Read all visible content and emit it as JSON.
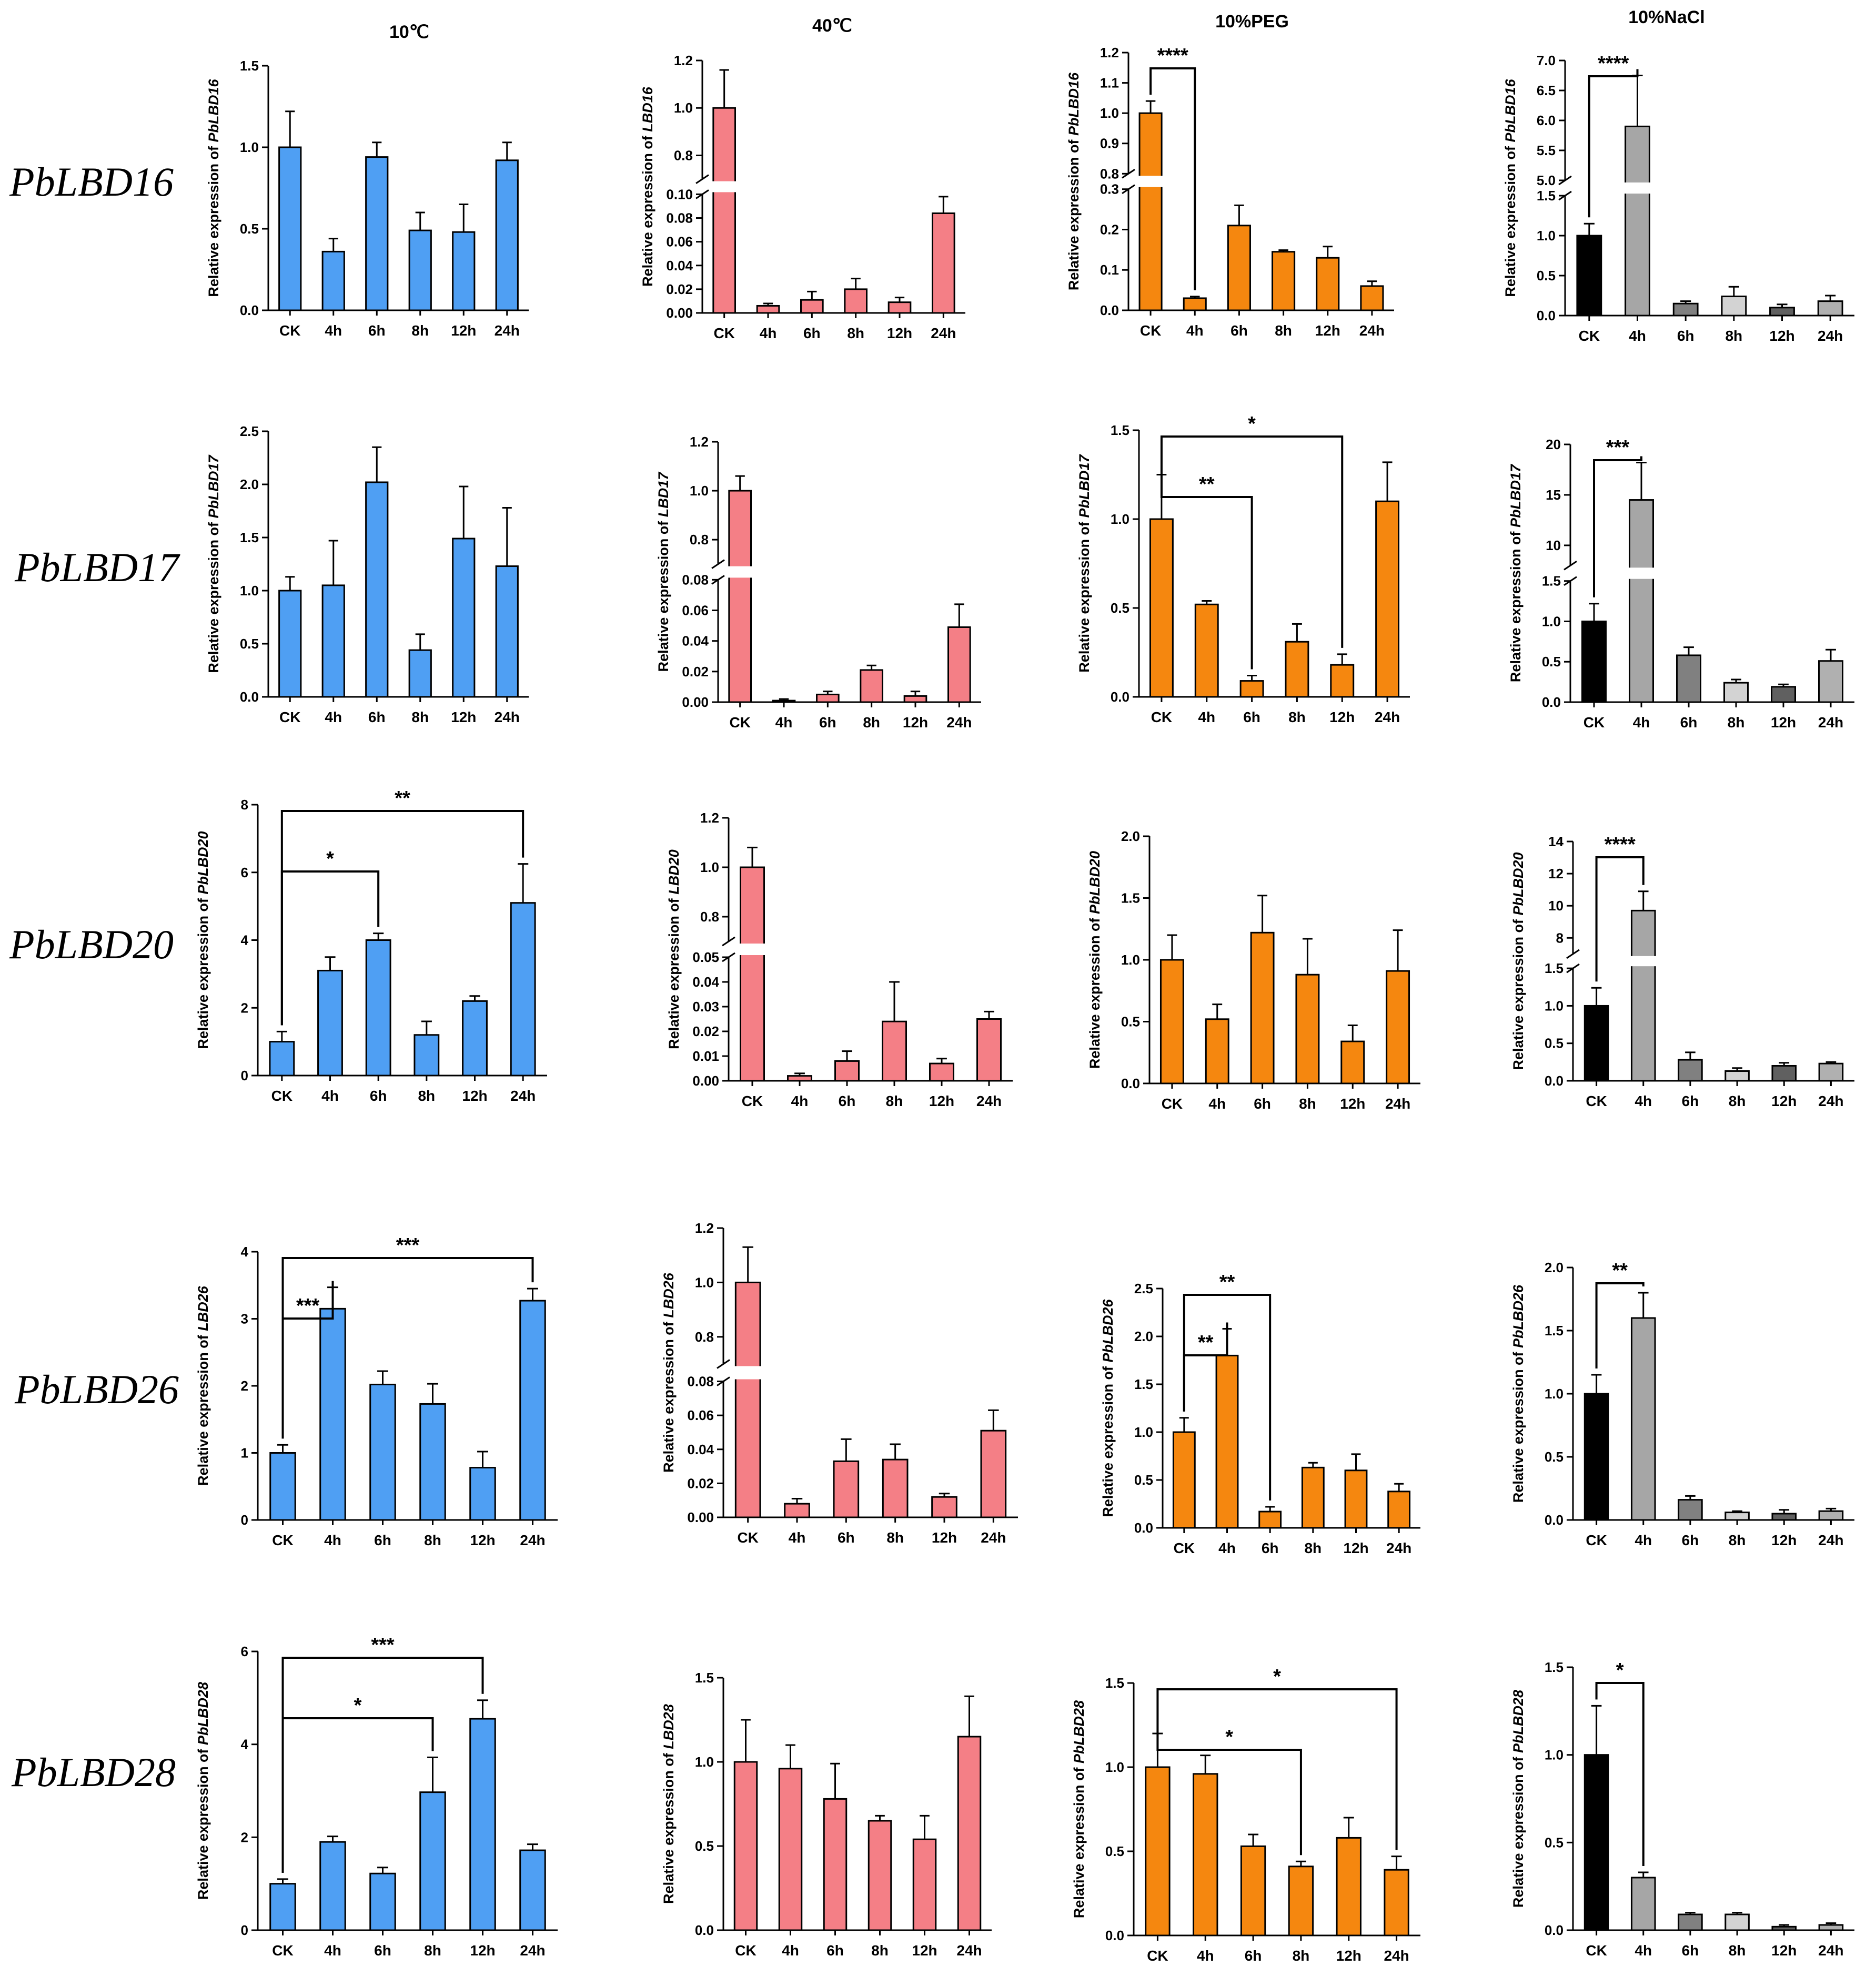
{
  "column_titles": [
    "10℃",
    "40℃",
    "10%PEG",
    "10%NaCl"
  ],
  "row_labels": [
    "PbLBD16",
    "PbLBD17",
    "PbLBD20",
    "PbLBD26",
    "PbLBD28"
  ],
  "colors": {
    "cold": "#4f9ff3",
    "heat": "#f47f86",
    "peg": "#f5870f",
    "nacl": [
      "#000000",
      "#a6a6a6",
      "#808080",
      "#d3d3d3",
      "#606060",
      "#b0b0b0"
    ],
    "axis": "#000000"
  },
  "chart_data": [
    {
      "type": "bar",
      "ylabel_prefix": "Relative expression of ",
      "ylabel_gene": "PbLBD16",
      "categories": [
        "CK",
        "4h",
        "6h",
        "8h",
        "12h",
        "24h"
      ],
      "values": [
        1.0,
        0.36,
        0.94,
        0.49,
        0.48,
        0.92
      ],
      "errors": [
        0.22,
        0.08,
        0.09,
        0.11,
        0.17,
        0.11
      ],
      "ylim": [
        0,
        1.5
      ],
      "yticks": [
        "0.0",
        "0.5",
        "1.0",
        "1.5"
      ],
      "significance": []
    },
    {
      "type": "bar",
      "ylabel_prefix": "Relative expression of ",
      "ylabel_gene": "LBD16",
      "categories": [
        "CK",
        "4h",
        "6h",
        "8h",
        "12h",
        "24h"
      ],
      "values": [
        1.0,
        0.006,
        0.011,
        0.02,
        0.009,
        0.084
      ],
      "errors": [
        0.16,
        0.002,
        0.007,
        0.009,
        0.004,
        0.014
      ],
      "broken_axis": {
        "lower": [
          0,
          0.1
        ],
        "upper": [
          0.7,
          1.2
        ]
      },
      "yticks_lower": [
        "0.00",
        "0.02",
        "0.04",
        "0.06",
        "0.08",
        "0.10"
      ],
      "yticks_upper": [
        "0.8",
        "1.0",
        "1.2"
      ],
      "significance": []
    },
    {
      "type": "bar",
      "ylabel_prefix": "Relative expression of ",
      "ylabel_gene": "PbLBD16",
      "categories": [
        "CK",
        "4h",
        "6h",
        "8h",
        "12h",
        "24h"
      ],
      "values": [
        1.0,
        0.03,
        0.21,
        0.145,
        0.13,
        0.06
      ],
      "errors": [
        0.04,
        0.004,
        0.05,
        0.004,
        0.028,
        0.012
      ],
      "broken_axis": {
        "lower": [
          0,
          0.3
        ],
        "upper": [
          0.8,
          1.2
        ]
      },
      "yticks_lower": [
        "0.0",
        "0.1",
        "0.2",
        "0.3"
      ],
      "yticks_upper": [
        "0.8",
        "0.9",
        "1.0",
        "1.1",
        "1.2"
      ],
      "significance": [
        {
          "from": 0,
          "to": 1,
          "label": "****"
        }
      ]
    },
    {
      "type": "bar",
      "ylabel_prefix": "Relative expression of ",
      "ylabel_gene": "PbLBD16",
      "categories": [
        "CK",
        "4h",
        "6h",
        "8h",
        "12h",
        "24h"
      ],
      "values": [
        1.0,
        5.9,
        0.15,
        0.24,
        0.1,
        0.18
      ],
      "errors": [
        0.15,
        0.85,
        0.03,
        0.12,
        0.04,
        0.07
      ],
      "broken_axis": {
        "lower": [
          0,
          1.5
        ],
        "upper": [
          5.0,
          7.0
        ]
      },
      "yticks_lower": [
        "0.0",
        "0.5",
        "1.0",
        "1.5"
      ],
      "yticks_upper": [
        "5.0",
        "5.5",
        "6.0",
        "6.5",
        "7.0"
      ],
      "significance": [
        {
          "from": 0,
          "to": 1,
          "label": "****"
        }
      ]
    },
    {
      "type": "bar",
      "ylabel_prefix": "Relative expression of ",
      "ylabel_gene": "PbLBD17",
      "categories": [
        "CK",
        "4h",
        "6h",
        "8h",
        "12h",
        "24h"
      ],
      "values": [
        1.0,
        1.05,
        2.02,
        0.44,
        1.49,
        1.23
      ],
      "errors": [
        0.13,
        0.42,
        0.33,
        0.15,
        0.49,
        0.55
      ],
      "ylim": [
        0,
        2.5
      ],
      "yticks": [
        "0.0",
        "0.5",
        "1.0",
        "1.5",
        "2.0",
        "2.5"
      ],
      "significance": []
    },
    {
      "type": "bar",
      "ylabel_prefix": "Relative expression of ",
      "ylabel_gene": "LBD17",
      "categories": [
        "CK",
        "4h",
        "6h",
        "8h",
        "12h",
        "24h"
      ],
      "values": [
        1.0,
        0.001,
        0.005,
        0.021,
        0.004,
        0.049
      ],
      "errors": [
        0.06,
        0.001,
        0.002,
        0.003,
        0.003,
        0.015
      ],
      "broken_axis": {
        "lower": [
          0,
          0.08
        ],
        "upper": [
          0.7,
          1.2
        ]
      },
      "yticks_lower": [
        "0.00",
        "0.02",
        "0.04",
        "0.06",
        "0.08"
      ],
      "yticks_upper": [
        "0.8",
        "1.0",
        "1.2"
      ],
      "significance": []
    },
    {
      "type": "bar",
      "ylabel_prefix": "Relative expression of ",
      "ylabel_gene": "PbLBD17",
      "categories": [
        "CK",
        "4h",
        "6h",
        "8h",
        "12h",
        "24h"
      ],
      "values": [
        1.0,
        0.52,
        0.09,
        0.31,
        0.18,
        1.1
      ],
      "errors": [
        0.25,
        0.02,
        0.03,
        0.1,
        0.06,
        0.22
      ],
      "ylim": [
        0,
        1.5
      ],
      "yticks": [
        "0.0",
        "0.5",
        "1.0",
        "1.5"
      ],
      "significance": [
        {
          "from": 0,
          "to": 2,
          "label": "**"
        },
        {
          "from": 0,
          "to": 4,
          "label": "*"
        }
      ]
    },
    {
      "type": "bar",
      "ylabel_prefix": "Relative expression of ",
      "ylabel_gene": "PbLBD17",
      "categories": [
        "CK",
        "4h",
        "6h",
        "8h",
        "12h",
        "24h"
      ],
      "values": [
        1.0,
        14.5,
        0.58,
        0.24,
        0.19,
        0.51
      ],
      "errors": [
        0.22,
        3.7,
        0.1,
        0.04,
        0.03,
        0.14
      ],
      "broken_axis": {
        "lower": [
          0,
          1.5
        ],
        "upper": [
          8,
          20
        ]
      },
      "yticks_lower": [
        "0.0",
        "0.5",
        "1.0",
        "1.5"
      ],
      "yticks_upper": [
        "10",
        "15",
        "20"
      ],
      "significance": [
        {
          "from": 0,
          "to": 1,
          "label": "***"
        }
      ]
    },
    {
      "type": "bar",
      "ylabel_prefix": "Relative expression of ",
      "ylabel_gene": "PbLBD20",
      "categories": [
        "CK",
        "4h",
        "6h",
        "8h",
        "12h",
        "24h"
      ],
      "values": [
        1.0,
        3.1,
        4.0,
        1.2,
        2.2,
        5.1
      ],
      "errors": [
        0.3,
        0.4,
        0.2,
        0.4,
        0.15,
        1.15
      ],
      "ylim": [
        0,
        8
      ],
      "yticks": [
        "0",
        "2",
        "4",
        "6",
        "8"
      ],
      "significance": [
        {
          "from": 0,
          "to": 2,
          "label": "*"
        },
        {
          "from": 0,
          "to": 5,
          "label": "**"
        }
      ]
    },
    {
      "type": "bar",
      "ylabel_prefix": "Relative expression of ",
      "ylabel_gene": "LBD20",
      "categories": [
        "CK",
        "4h",
        "6h",
        "8h",
        "12h",
        "24h"
      ],
      "values": [
        1.0,
        0.002,
        0.008,
        0.024,
        0.007,
        0.025
      ],
      "errors": [
        0.08,
        0.001,
        0.004,
        0.016,
        0.002,
        0.003
      ],
      "broken_axis": {
        "lower": [
          0,
          0.05
        ],
        "upper": [
          0.7,
          1.2
        ]
      },
      "yticks_lower": [
        "0.00",
        "0.01",
        "0.02",
        "0.03",
        "0.04",
        "0.05"
      ],
      "yticks_upper": [
        "0.8",
        "1.0",
        "1.2"
      ],
      "significance": []
    },
    {
      "type": "bar",
      "ylabel_prefix": "Relative expression of ",
      "ylabel_gene": "PbLBD20",
      "categories": [
        "CK",
        "4h",
        "6h",
        "8h",
        "12h",
        "24h"
      ],
      "values": [
        1.0,
        0.52,
        1.22,
        0.88,
        0.34,
        0.91
      ],
      "errors": [
        0.2,
        0.12,
        0.3,
        0.29,
        0.13,
        0.33
      ],
      "ylim": [
        0,
        2.0
      ],
      "yticks": [
        "0.0",
        "0.5",
        "1.0",
        "1.5",
        "2.0"
      ],
      "significance": []
    },
    {
      "type": "bar",
      "ylabel_prefix": "Relative expression of ",
      "ylabel_gene": "PbLBD20",
      "categories": [
        "CK",
        "4h",
        "6h",
        "8h",
        "12h",
        "24h"
      ],
      "values": [
        1.0,
        9.7,
        0.28,
        0.13,
        0.2,
        0.23
      ],
      "errors": [
        0.24,
        1.2,
        0.1,
        0.04,
        0.04,
        0.02
      ],
      "broken_axis": {
        "lower": [
          0,
          1.5
        ],
        "upper": [
          7,
          14
        ]
      },
      "yticks_lower": [
        "0.0",
        "0.5",
        "1.0",
        "1.5"
      ],
      "yticks_upper": [
        "8",
        "10",
        "12",
        "14"
      ],
      "significance": [
        {
          "from": 0,
          "to": 1,
          "label": "****"
        }
      ]
    },
    {
      "type": "bar",
      "ylabel_prefix": "Relative expression of ",
      "ylabel_gene": "LBD26",
      "categories": [
        "CK",
        "4h",
        "6h",
        "8h",
        "12h",
        "24h"
      ],
      "values": [
        1.0,
        3.15,
        2.02,
        1.73,
        0.78,
        3.27
      ],
      "errors": [
        0.12,
        0.32,
        0.2,
        0.3,
        0.24,
        0.18
      ],
      "ylim": [
        0,
        4
      ],
      "yticks": [
        "0",
        "1",
        "2",
        "3",
        "4"
      ],
      "significance": [
        {
          "from": 0,
          "to": 1,
          "label": "***"
        },
        {
          "from": 0,
          "to": 5,
          "label": "***"
        }
      ]
    },
    {
      "type": "bar",
      "ylabel_prefix": "Relative expression of ",
      "ylabel_gene": "LBD26",
      "categories": [
        "CK",
        "4h",
        "6h",
        "8h",
        "12h",
        "24h"
      ],
      "values": [
        1.0,
        0.008,
        0.033,
        0.034,
        0.012,
        0.051
      ],
      "errors": [
        0.13,
        0.003,
        0.013,
        0.009,
        0.002,
        0.012
      ],
      "broken_axis": {
        "lower": [
          0,
          0.08
        ],
        "upper": [
          0.7,
          1.2
        ]
      },
      "yticks_lower": [
        "0.00",
        "0.02",
        "0.04",
        "0.06",
        "0.08"
      ],
      "yticks_upper": [
        "0.8",
        "1.0",
        "1.2"
      ],
      "significance": []
    },
    {
      "type": "bar",
      "ylabel_prefix": "Relative expression of ",
      "ylabel_gene": "PbLBD26",
      "categories": [
        "CK",
        "4h",
        "6h",
        "8h",
        "12h",
        "24h"
      ],
      "values": [
        1.0,
        1.8,
        0.17,
        0.63,
        0.6,
        0.38
      ],
      "errors": [
        0.15,
        0.28,
        0.05,
        0.05,
        0.17,
        0.08
      ],
      "ylim": [
        0,
        2.5
      ],
      "yticks": [
        "0.0",
        "0.5",
        "1.0",
        "1.5",
        "2.0",
        "2.5"
      ],
      "significance": [
        {
          "from": 0,
          "to": 1,
          "label": "**"
        },
        {
          "from": 0,
          "to": 2,
          "label": "**"
        }
      ]
    },
    {
      "type": "bar",
      "ylabel_prefix": "Relative expression of ",
      "ylabel_gene": "PbLBD26",
      "categories": [
        "CK",
        "4h",
        "6h",
        "8h",
        "12h",
        "24h"
      ],
      "values": [
        1.0,
        1.6,
        0.16,
        0.06,
        0.05,
        0.07
      ],
      "errors": [
        0.15,
        0.2,
        0.03,
        0.01,
        0.03,
        0.02
      ],
      "ylim": [
        0,
        2.0
      ],
      "yticks": [
        "0.0",
        "0.5",
        "1.0",
        "1.5",
        "2.0"
      ],
      "significance": [
        {
          "from": 0,
          "to": 1,
          "label": "**"
        }
      ]
    },
    {
      "type": "bar",
      "ylabel_prefix": "Relative expression of ",
      "ylabel_gene": "PbLBD28",
      "categories": [
        "CK",
        "4h",
        "6h",
        "8h",
        "12h",
        "24h"
      ],
      "values": [
        1.0,
        1.9,
        1.22,
        2.97,
        4.55,
        1.72
      ],
      "errors": [
        0.1,
        0.12,
        0.13,
        0.75,
        0.4,
        0.13
      ],
      "ylim": [
        0,
        6
      ],
      "yticks": [
        "0",
        "2",
        "4",
        "6"
      ],
      "significance": [
        {
          "from": 0,
          "to": 3,
          "label": "*"
        },
        {
          "from": 0,
          "to": 4,
          "label": "***"
        }
      ]
    },
    {
      "type": "bar",
      "ylabel_prefix": "Relative expression of ",
      "ylabel_gene": "LBD28",
      "categories": [
        "CK",
        "4h",
        "6h",
        "8h",
        "12h",
        "24h"
      ],
      "values": [
        1.0,
        0.96,
        0.78,
        0.65,
        0.54,
        1.15
      ],
      "errors": [
        0.25,
        0.14,
        0.21,
        0.03,
        0.14,
        0.24
      ],
      "ylim": [
        0,
        1.5
      ],
      "yticks": [
        "0.0",
        "0.5",
        "1.0",
        "1.5"
      ],
      "significance": []
    },
    {
      "type": "bar",
      "ylabel_prefix": "Relative expression of ",
      "ylabel_gene": "PbLBD28",
      "categories": [
        "CK",
        "4h",
        "6h",
        "8h",
        "12h",
        "24h"
      ],
      "values": [
        1.0,
        0.96,
        0.53,
        0.41,
        0.58,
        0.39
      ],
      "errors": [
        0.2,
        0.11,
        0.07,
        0.03,
        0.12,
        0.08
      ],
      "ylim": [
        0,
        1.5
      ],
      "yticks": [
        "0.0",
        "0.5",
        "1.0",
        "1.5"
      ],
      "significance": [
        {
          "from": 0,
          "to": 3,
          "label": "*"
        },
        {
          "from": 0,
          "to": 5,
          "label": "*"
        }
      ]
    },
    {
      "type": "bar",
      "ylabel_prefix": "Relative expression of ",
      "ylabel_gene": "PbLBD28",
      "categories": [
        "CK",
        "4h",
        "6h",
        "8h",
        "12h",
        "24h"
      ],
      "values": [
        1.0,
        0.3,
        0.09,
        0.09,
        0.02,
        0.03
      ],
      "errors": [
        0.28,
        0.03,
        0.01,
        0.01,
        0.01,
        0.01
      ],
      "ylim": [
        0,
        1.5
      ],
      "yticks": [
        "0.0",
        "0.5",
        "1.0",
        "1.5"
      ],
      "significance": [
        {
          "from": 0,
          "to": 1,
          "label": "*"
        }
      ]
    }
  ]
}
